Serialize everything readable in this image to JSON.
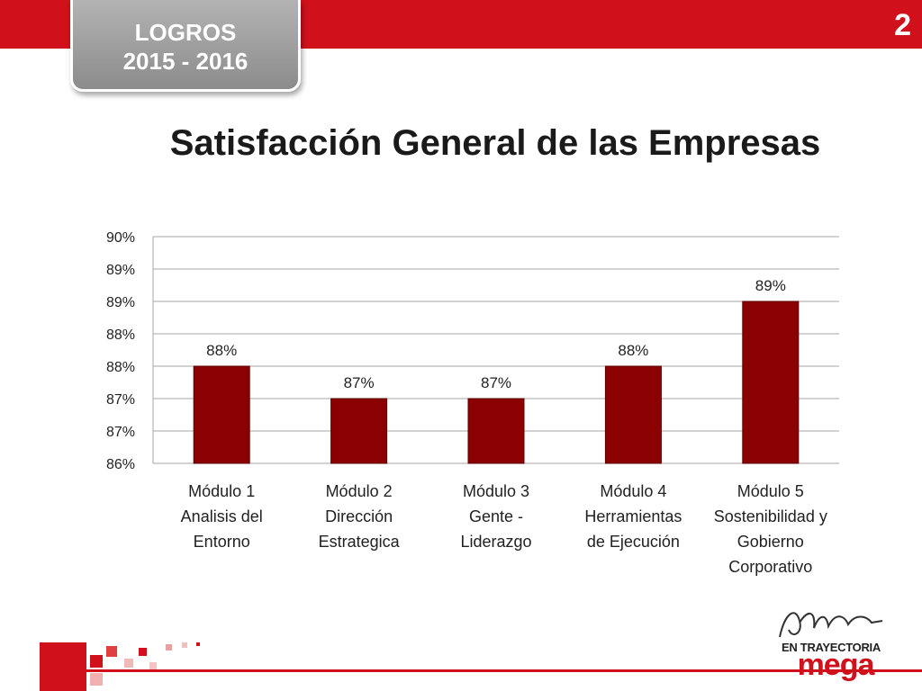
{
  "header": {
    "tab_line1": "LOGROS",
    "tab_line2": "2015 - 2016",
    "slide_number": "2"
  },
  "logo": {
    "script_word": "Afiliada",
    "subtitle": "EN TRAYECTORIA",
    "brand": "mega"
  },
  "colors": {
    "accent": "#d0111b",
    "bar": "#8b0000",
    "tab": "#9e9e9e"
  },
  "chart_data": {
    "type": "bar",
    "title": "Satisfacción General de las Empresas",
    "xlabel": "",
    "ylabel": "",
    "categories": [
      [
        "Módulo 1",
        "Analisis del",
        "Entorno"
      ],
      [
        "Módulo 2",
        "Dirección",
        "Estrategica"
      ],
      [
        "Módulo 3",
        "Gente -",
        "Liderazgo"
      ],
      [
        "Módulo 4",
        "Herramientas",
        "de Ejecución"
      ],
      [
        "Módulo 5",
        "Sostenibilidad y",
        "Gobierno",
        "Corporativo"
      ]
    ],
    "values": [
      87.5,
      87.0,
      87.0,
      87.5,
      88.5
    ],
    "data_labels": [
      "88%",
      "87%",
      "87%",
      "88%",
      "89%"
    ],
    "ylim": [
      86.0,
      89.5
    ],
    "ytick_values": [
      86.0,
      86.5,
      87.0,
      87.5,
      88.0,
      88.5,
      89.0,
      89.5
    ],
    "ytick_labels": [
      "86%",
      "87%",
      "87%",
      "88%",
      "88%",
      "89%",
      "89%",
      "90%"
    ],
    "grid": true,
    "legend": "none"
  }
}
